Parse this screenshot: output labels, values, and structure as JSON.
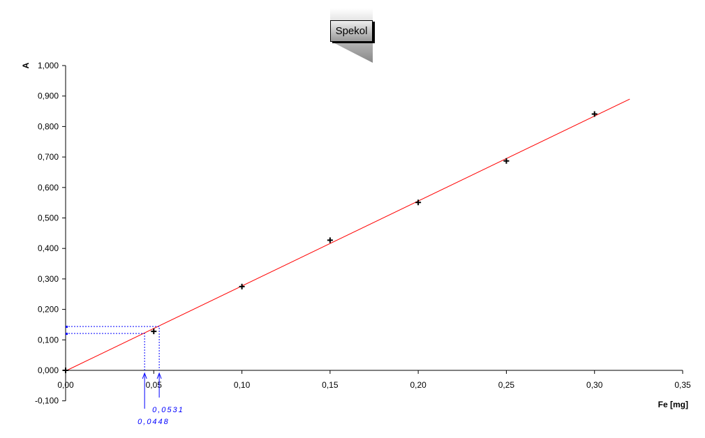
{
  "chart_data": {
    "type": "scatter",
    "title": "Spekol",
    "xlabel": "Fe [mg]",
    "ylabel": "A",
    "xlim": [
      0,
      0.35
    ],
    "ylim": [
      -0.1,
      1.0
    ],
    "xticks": [
      "0,00",
      "0,05",
      "0,10",
      "0,15",
      "0,20",
      "0,25",
      "0,30",
      "0,35"
    ],
    "yticks": [
      "-0,100",
      "0,000",
      "0,100",
      "0,200",
      "0,300",
      "0,400",
      "0,500",
      "0,600",
      "0,700",
      "0,800",
      "0,900",
      "1,000"
    ],
    "points": {
      "x": [
        0,
        0.05,
        0.1,
        0.15,
        0.2,
        0.25,
        0.3
      ],
      "y": [
        0,
        0.128,
        0.275,
        0.427,
        0.551,
        0.687,
        0.841
      ]
    },
    "fit_line": {
      "x": [
        0,
        0.32
      ],
      "y": [
        -0.002,
        0.89
      ],
      "color": "#ff0000"
    },
    "annotations": [
      {
        "x": 0.0448,
        "y": 0.121,
        "label": "0,0448"
      },
      {
        "x": 0.0531,
        "y": 0.144,
        "label": "0,0531"
      }
    ],
    "annotation_color": "#0000ff",
    "grid": false
  }
}
